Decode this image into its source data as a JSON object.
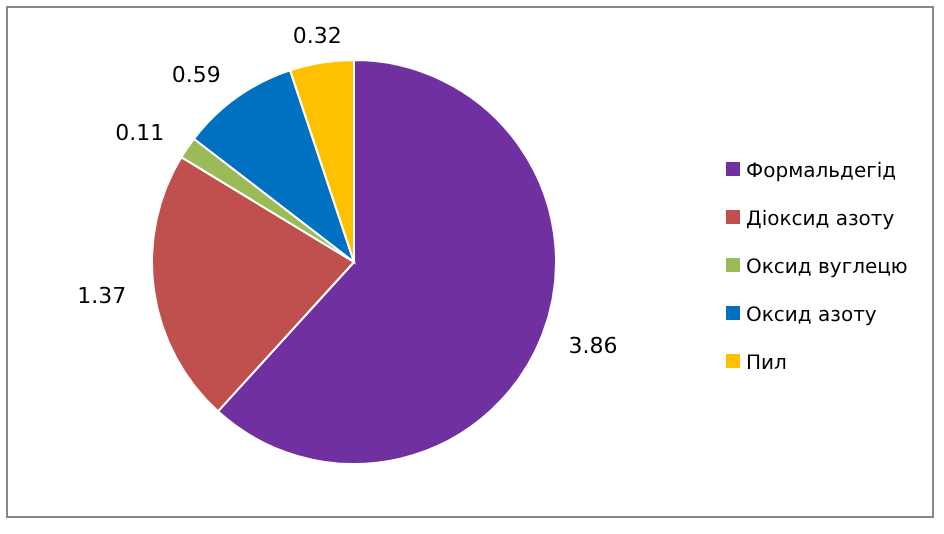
{
  "chart_data": {
    "type": "pie",
    "categories": [
      "Формальдегід",
      "Діоксид азоту",
      "Оксид вуглецю",
      "Оксид азоту",
      "Пил"
    ],
    "values": [
      3.86,
      1.37,
      0.11,
      0.59,
      0.32
    ],
    "colors": [
      "#7030a0",
      "#c0504d",
      "#9bbb59",
      "#0070c0",
      "#ffc000"
    ],
    "data_labels": true,
    "legend": "right"
  }
}
